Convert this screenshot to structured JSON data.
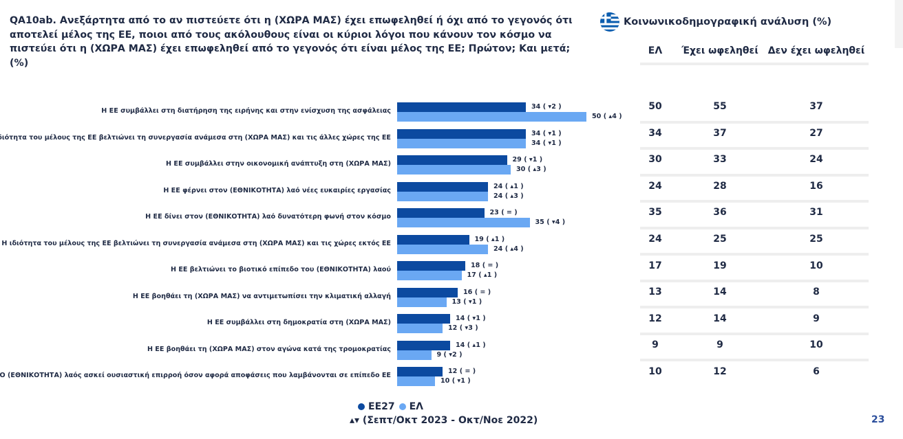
{
  "title": "QA10ab. Ανεξάρτητα από το αν πιστεύετε ότι η (ΧΩΡΑ ΜΑΣ) έχει επωφεληθεί ή όχι από το γεγονός ότι αποτελεί μέλος της ΕΕ, ποιοι από τους ακόλουθους είναι οι κύριοι λόγοι που κάνουν τον κόσμο να πιστεύει ότι η (ΧΩΡΑ ΜΑΣ) έχει επωφεληθεί από το γεγονός ότι είναι μέλος της ΕΕ; Πρώτον; Και μετά; (%)",
  "right_panel": {
    "title": "Κοινωνικοδημογραφική ανάλυση (%)",
    "flag_icon": "greek-flag-icon",
    "columns": [
      "ΕΛ",
      "Έχει ωφεληθεί",
      "Δεν έχει ωφεληθεί"
    ],
    "rows": [
      [
        "50",
        "55",
        "37"
      ],
      [
        "34",
        "37",
        "27"
      ],
      [
        "30",
        "33",
        "24"
      ],
      [
        "24",
        "28",
        "16"
      ],
      [
        "35",
        "36",
        "31"
      ],
      [
        "24",
        "25",
        "25"
      ],
      [
        "17",
        "19",
        "10"
      ],
      [
        "13",
        "14",
        "8"
      ],
      [
        "12",
        "14",
        "9"
      ],
      [
        "9",
        "9",
        "10"
      ],
      [
        "10",
        "12",
        "6"
      ]
    ]
  },
  "legend": {
    "items": [
      {
        "label": "ΕΕ27",
        "color": "#0c4aa0"
      },
      {
        "label": "ΕΛ",
        "color": "#6aa8f3"
      }
    ],
    "period": "▴▾ (Σεπτ/Οκτ 2023 - Οκτ/Νοε 2022)"
  },
  "page_number": "23",
  "chart_data": {
    "type": "bar",
    "orientation": "horizontal",
    "categories": [
      "Η ΕΕ συμβάλλει στη διατήρηση της ειρήνης και στην ενίσχυση της ασφάλειας",
      "Η ιδιότητα του μέλους της ΕΕ βελτιώνει τη συνεργασία ανάμεσα στη (ΧΩΡΑ ΜΑΣ) και τις άλλες χώρες της ΕΕ",
      "Η ΕΕ συμβάλλει στην οικονομική ανάπτυξη στη (ΧΩΡΑ ΜΑΣ)",
      "Η ΕΕ φέρνει στον (ΕΘΝΙΚΟΤΗΤΑ) λαό νέες ευκαιρίες εργασίας",
      "Η ΕΕ δίνει στον (ΕΘΝΙΚΟΤΗΤΑ) λαό δυνατότερη φωνή στον κόσμο",
      "Η ιδιότητα του μέλους της ΕΕ βελτιώνει τη συνεργασία ανάμεσα στη (ΧΩΡΑ ΜΑΣ) και τις χώρες εκτός ΕΕ",
      "Η ΕΕ βελτιώνει το βιοτικό επίπεδο του (ΕΘΝΙΚΟΤΗΤΑ) λαού",
      "Η ΕΕ βοηθάει τη (ΧΩΡΑ ΜΑΣ) να αντιμετωπίσει την κλιματική αλλαγή",
      "Η ΕΕ συμβάλλει στη δημοκρατία στη (ΧΩΡΑ ΜΑΣ)",
      "Η ΕΕ βοηθάει τη (ΧΩΡΑ ΜΑΣ) στον αγώνα κατά της τρομοκρατίας",
      "Ο (ΕΘΝΙΚΟΤΗΤΑ) λαός ασκεί ουσιαστική επιρροή όσον αφορά αποφάσεις που λαμβάνονται σε επίπεδο ΕΕ"
    ],
    "series": [
      {
        "name": "ΕΕ27",
        "color": "#0c4aa0",
        "values": [
          34,
          34,
          29,
          24,
          23,
          19,
          18,
          16,
          14,
          14,
          12
        ],
        "labels": [
          "34 ( ▾2 )",
          "34 ( ▾1 )",
          "29 ( ▾1 )",
          "24 ( ▴1 )",
          "23 ( = )",
          "19 ( ▴1 )",
          "18 ( = )",
          "16 ( = )",
          "14 ( ▾1 )",
          "14 ( ▴1 )",
          "12 ( = )"
        ]
      },
      {
        "name": "ΕΛ",
        "color": "#6aa8f3",
        "values": [
          50,
          34,
          30,
          24,
          35,
          24,
          17,
          13,
          12,
          9,
          10
        ],
        "labels": [
          "50 ( ▴4 )",
          "34 ( ▾1 )",
          "30 ( ▴3 )",
          "24 ( ▴3 )",
          "35 ( ▾4 )",
          "24 ( ▴4 )",
          "17 ( ▴1 )",
          "13 ( ▾1 )",
          "12 ( ▾3 )",
          "9 ( ▾2 )",
          "10 ( ▾1 )"
        ]
      }
    ],
    "xlim": [
      0,
      50
    ],
    "grid": false,
    "legend_position": "bottom"
  }
}
